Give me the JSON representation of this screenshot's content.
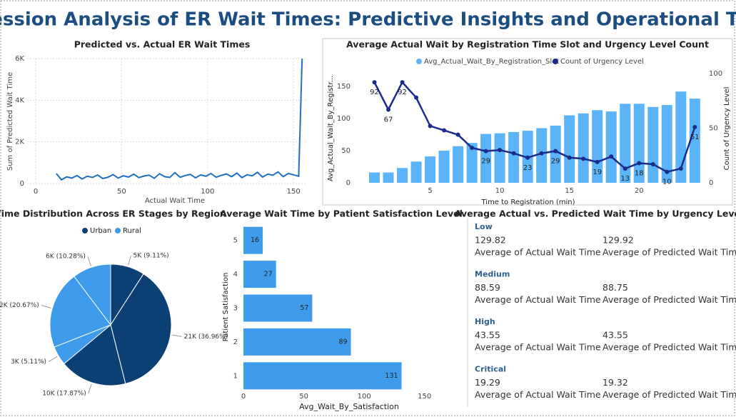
{
  "title": "Regression Analysis of ER Wait Times: Predictive Insights and Operational Trends",
  "chart_data": [
    {
      "type": "line",
      "title": "Predicted vs. Actual ER Wait Times",
      "xlabel": "Actual Wait Time",
      "ylabel": "Sum of Predicted Wait Time",
      "color": "#1f6fc0",
      "x": [
        12,
        15,
        18,
        21,
        24,
        27,
        30,
        33,
        36,
        39,
        42,
        45,
        48,
        51,
        54,
        57,
        60,
        63,
        66,
        69,
        72,
        75,
        78,
        81,
        84,
        87,
        90,
        93,
        96,
        99,
        102,
        105,
        108,
        111,
        114,
        117,
        120,
        123,
        126,
        129,
        132,
        135,
        138,
        141,
        144,
        147,
        150,
        153,
        155
      ],
      "values": [
        480,
        180,
        320,
        260,
        380,
        220,
        350,
        290,
        410,
        240,
        300,
        430,
        260,
        370,
        310,
        450,
        280,
        360,
        400,
        250,
        470,
        330,
        290,
        520,
        300,
        380,
        440,
        270,
        410,
        350,
        480,
        300,
        390,
        460,
        330,
        500,
        280,
        420,
        370,
        540,
        310,
        450,
        400,
        560,
        330,
        480,
        420,
        350,
        6000
      ],
      "xlim": [
        -5,
        157
      ],
      "xticks": [
        0,
        50,
        100,
        150
      ],
      "ylim": [
        0,
        6000
      ],
      "yticks": [
        0,
        {
          "value": 2000,
          "label": "2K"
        },
        {
          "value": 4000,
          "label": "4K"
        },
        {
          "value": 6000,
          "label": "6K"
        }
      ],
      "grid": true
    },
    {
      "type": "combo",
      "title": "Average Actual Wait by Registration Time Slot and Urgency Level Count",
      "xlabel": "Time to Registration (min)",
      "ylabel": "Avg_Actual_Wait_By_Registr...",
      "y2label": "Count of Urgency Level",
      "x": [
        1,
        2,
        3,
        4,
        5,
        6,
        7,
        8,
        9,
        10,
        11,
        12,
        13,
        14,
        15,
        16,
        17,
        18,
        19,
        20,
        21,
        22,
        23,
        24
      ],
      "series": [
        {
          "name": "Avg_Actual_Wait_By_Registration_Slot",
          "color": "#5ab4f7",
          "kind": "bar",
          "values": [
            16,
            16,
            23,
            33,
            41,
            50,
            57,
            62,
            76,
            77,
            79,
            81,
            85,
            89,
            105,
            108,
            113,
            111,
            123,
            123,
            118,
            121,
            142,
            131
          ]
        },
        {
          "name": "Count of Urgency Level",
          "color": "#1a2b8c",
          "kind": "line",
          "axis": "y2",
          "values": [
            92,
            67,
            92,
            78,
            52,
            48,
            44,
            32,
            29,
            30,
            27,
            23,
            27,
            29,
            23,
            22,
            19,
            24,
            13,
            18,
            17,
            10,
            13,
            51
          ],
          "value_labels": [
            "92",
            "67",
            "92",
            null,
            null,
            null,
            null,
            null,
            "29",
            null,
            null,
            "23",
            null,
            "29",
            null,
            null,
            "19",
            null,
            "13",
            "18",
            null,
            "10",
            null,
            "51"
          ]
        }
      ],
      "xlim": [
        0,
        24.6
      ],
      "xticks": [
        5,
        10,
        15,
        20
      ],
      "ylim": [
        0,
        170
      ],
      "yticks": [
        0,
        50,
        100,
        150
      ],
      "y2lim": [
        0,
        100
      ],
      "y2ticks": [
        0,
        50,
        100
      ]
    },
    {
      "type": "pie",
      "title": "Time Distribution Across ER Stages by Region",
      "legend": [
        {
          "name": "Urban",
          "color": "#0c3f73"
        },
        {
          "name": "Rural",
          "color": "#3f9ced"
        }
      ],
      "values": [
        9.11,
        36.96,
        17.87,
        5.11,
        20.67,
        10.28
      ],
      "value_labels": [
        "5K (9.11%)",
        "21K (36.96%)",
        "10K (17.87%)",
        "3K (5.11%)",
        "12K (20.67%)",
        "6K (10.28%)"
      ],
      "colors": [
        "#0c3f73",
        "#0c3f73",
        "#0c3f73",
        "#3f9ced",
        "#3f9ced",
        "#3f9ced"
      ]
    },
    {
      "type": "hbar",
      "title": "Average Wait Time by Patient Satisfaction Level",
      "xlabel": "Avg_Wait_By_Satisfaction",
      "ylabel": "Patient Satisfaction",
      "color": "#3f9ced",
      "categories": [
        "5",
        "4",
        "3",
        "2",
        "1"
      ],
      "values": [
        16,
        27,
        57,
        89,
        131
      ],
      "xlim": [
        0,
        175
      ],
      "xticks": [
        0,
        50,
        100,
        150
      ]
    }
  ],
  "cards": {
    "title": "Average Actual vs. Predicted Wait Time by Urgency Level",
    "actual_label": "Average of Actual Wait Time",
    "predicted_label": "Average of Predicted Wait Time",
    "groups": [
      {
        "label": "Low",
        "actual": 129.82,
        "predicted": 129.92
      },
      {
        "label": "Medium",
        "actual": 88.59,
        "predicted": 88.75
      },
      {
        "label": "High",
        "actual": 43.55,
        "predicted": 43.55
      },
      {
        "label": "Critical",
        "actual": 19.29,
        "predicted": 19.32
      }
    ]
  }
}
